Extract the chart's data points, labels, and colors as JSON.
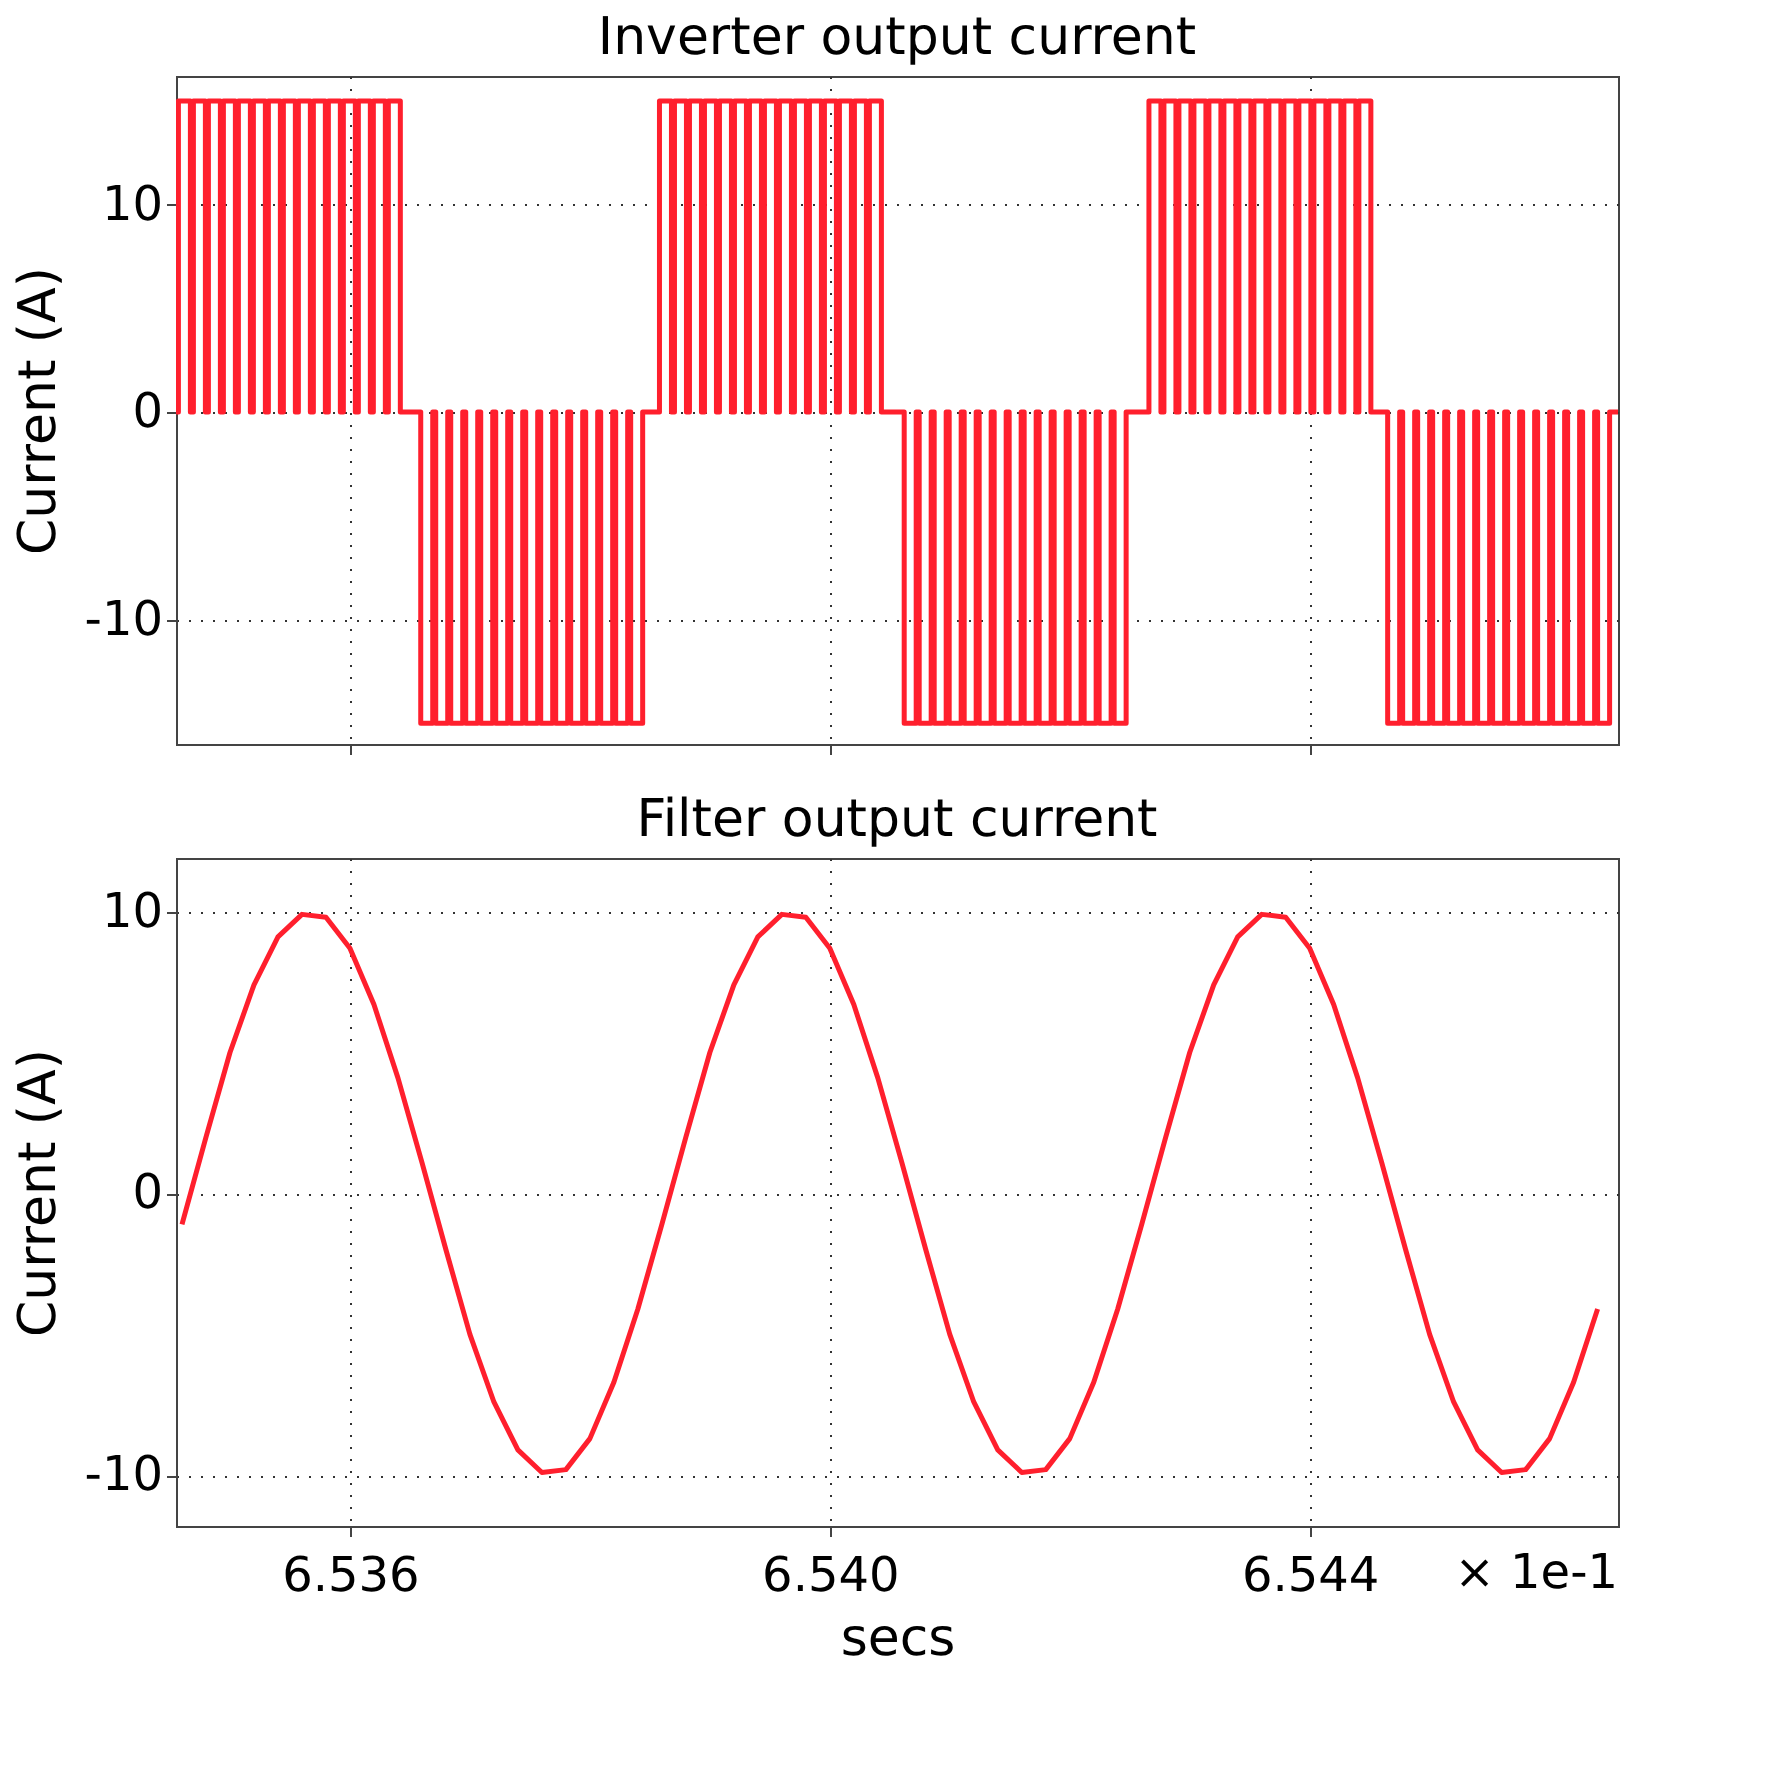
{
  "chart_data": [
    {
      "type": "step",
      "title": "Inverter output current",
      "ylabel": "Current (A)",
      "xlim": [
        6.53455,
        6.54657
      ],
      "ylim": [
        -16.0,
        16.2
      ],
      "xticks": [
        {
          "value": 6.536,
          "label": null
        },
        {
          "value": 6.54,
          "label": null
        },
        {
          "value": 6.544,
          "label": null
        }
      ],
      "yticks": [
        -10,
        0,
        10
      ],
      "grid": true,
      "tick_labels": "y",
      "x": [
        6.53455,
        6.53457,
        6.53467,
        6.534695,
        6.534795,
        6.53482,
        6.53492,
        6.534945,
        6.535045,
        6.53507,
        6.53517,
        6.535195,
        6.535295,
        6.53532,
        6.53542,
        6.535445,
        6.535545,
        6.53557,
        6.53567,
        6.535695,
        6.535795,
        6.53582,
        6.53592,
        6.535945,
        6.536045,
        6.53607,
        6.53617,
        6.536195,
        6.536295,
        6.53632,
        6.53642,
        6.53659,
        6.53669,
        6.536715,
        6.536815,
        6.53684,
        6.53694,
        6.536965,
        6.537065,
        6.53709,
        6.53719,
        6.537215,
        6.537315,
        6.53734,
        6.53744,
        6.537465,
        6.537565,
        6.53759,
        6.53769,
        6.537715,
        6.537815,
        6.53784,
        6.53794,
        6.537965,
        6.538065,
        6.53809,
        6.53819,
        6.538215,
        6.538315,
        6.53834,
        6.53844,
        6.53858,
        6.53868,
        6.538705,
        6.538805,
        6.53883,
        6.53893,
        6.538955,
        6.539055,
        6.53908,
        6.53918,
        6.539205,
        6.539305,
        6.53933,
        6.53943,
        6.539455,
        6.539555,
        6.53958,
        6.53968,
        6.539705,
        6.539805,
        6.53983,
        6.53993,
        6.539955,
        6.540055,
        6.54008,
        6.54018,
        6.540205,
        6.540305,
        6.54033,
        6.54043,
        6.54062,
        6.54072,
        6.540745,
        6.540845,
        6.54087,
        6.54097,
        6.540995,
        6.541095,
        6.54112,
        6.54122,
        6.541245,
        6.541345,
        6.54137,
        6.54147,
        6.541495,
        6.541595,
        6.54162,
        6.54172,
        6.541745,
        6.541845,
        6.54187,
        6.54197,
        6.541995,
        6.542095,
        6.54212,
        6.54222,
        6.542245,
        6.542345,
        6.54237,
        6.54247,
        6.54266,
        6.54276,
        6.542785,
        6.542885,
        6.54291,
        6.54301,
        6.543035,
        6.543135,
        6.54316,
        6.54326,
        6.543285,
        6.543385,
        6.54341,
        6.54351,
        6.543535,
        6.543635,
        6.54366,
        6.54376,
        6.543785,
        6.543885,
        6.54391,
        6.54401,
        6.544035,
        6.544135,
        6.54416,
        6.54426,
        6.544285,
        6.544385,
        6.54441,
        6.54451,
        6.54465,
        6.54475,
        6.544775,
        6.544875,
        6.5449,
        6.545,
        6.545025,
        6.545125,
        6.54515,
        6.54525,
        6.545275,
        6.545375,
        6.5454,
        6.5455,
        6.545525,
        6.545625,
        6.54565,
        6.54575,
        6.545775,
        6.545875,
        6.5459,
        6.546,
        6.546025,
        6.546125,
        6.54615,
        6.54625,
        6.546275,
        6.546375,
        6.5464,
        6.5465,
        6.54657
      ],
      "series": [
        {
          "color": "#ff1f2d",
          "values": [
            0,
            15,
            0,
            15,
            0,
            15,
            0,
            15,
            0,
            15,
            0,
            15,
            0,
            15,
            0,
            15,
            0,
            15,
            0,
            15,
            0,
            15,
            0,
            15,
            0,
            15,
            0,
            15,
            0,
            15,
            0,
            -15,
            0,
            -15,
            0,
            -15,
            0,
            -15,
            0,
            -15,
            0,
            -15,
            0,
            -15,
            0,
            -15,
            0,
            -15,
            0,
            -15,
            0,
            -15,
            0,
            -15,
            0,
            -15,
            0,
            -15,
            0,
            -15,
            0,
            15,
            0,
            15,
            0,
            15,
            0,
            15,
            0,
            15,
            0,
            15,
            0,
            15,
            0,
            15,
            0,
            15,
            0,
            15,
            0,
            15,
            0,
            15,
            0,
            15,
            0,
            15,
            0,
            15,
            0,
            -15,
            0,
            -15,
            0,
            -15,
            0,
            -15,
            0,
            -15,
            0,
            -15,
            0,
            -15,
            0,
            -15,
            0,
            -15,
            0,
            -15,
            0,
            -15,
            0,
            -15,
            0,
            -15,
            0,
            -15,
            0,
            -15,
            0,
            15,
            0,
            15,
            0,
            15,
            0,
            15,
            0,
            15,
            0,
            15,
            0,
            15,
            0,
            15,
            0,
            15,
            0,
            15,
            0,
            15,
            0,
            15,
            0,
            15,
            0,
            15,
            0,
            15,
            0,
            -15,
            0,
            -15,
            0,
            -15,
            0,
            -15,
            0,
            -15,
            0,
            -15,
            0,
            -15,
            0,
            -15,
            0,
            -15,
            0,
            -15,
            0,
            -15,
            0,
            -15,
            0,
            -15,
            0,
            -15,
            0,
            -15,
            0,
            0
          ]
        }
      ]
    },
    {
      "type": "line",
      "title": "Filter output current",
      "ylabel": "Current (A)",
      "xlabel": "secs",
      "xlim": [
        6.53455,
        6.54657
      ],
      "ylim": [
        -11.8,
        11.9
      ],
      "xticks": [
        6.536,
        {
          "value": 6.54,
          "label": "6.540"
        },
        6.544
      ],
      "yticks": [
        -10,
        0,
        10
      ],
      "grid": true,
      "annotations": [
        "× 1e-1"
      ],
      "x": [
        6.5346,
        6.5348,
        6.535,
        6.5352,
        6.5354,
        6.5356,
        6.5358,
        6.536,
        6.5362,
        6.5364,
        6.5366,
        6.5368,
        6.537,
        6.5372,
        6.5374,
        6.5376,
        6.5378,
        6.538,
        6.5382,
        6.5384,
        6.5386,
        6.5388,
        6.539,
        6.5392,
        6.5394,
        6.5396,
        6.5398,
        6.54,
        6.5402,
        6.5404,
        6.5406,
        6.5408,
        6.541,
        6.5412,
        6.5414,
        6.5416,
        6.5418,
        6.542,
        6.5422,
        6.5424,
        6.5426,
        6.5428,
        6.543,
        6.5432,
        6.5434,
        6.5436,
        6.5438,
        6.544,
        6.5442,
        6.5444,
        6.5446,
        6.5448,
        6.545,
        6.5452,
        6.5454,
        6.5456,
        6.5458,
        6.546,
        6.5462,
        6.5464
      ],
      "series": [
        {
          "color": "#ff1f2d",
          "values": [
            -1.1,
            2.0,
            5.0,
            7.4,
            9.1,
            9.9,
            9.8,
            8.7,
            6.7,
            4.1,
            1.1,
            -2.0,
            -5.0,
            -7.4,
            -9.1,
            -9.9,
            -9.8,
            -8.7,
            -6.7,
            -4.1,
            -1.1,
            2.0,
            5.0,
            7.4,
            9.1,
            9.9,
            9.8,
            8.7,
            6.7,
            4.1,
            1.1,
            -2.0,
            -5.0,
            -7.4,
            -9.1,
            -9.9,
            -9.8,
            -8.7,
            -6.7,
            -4.1,
            -1.1,
            2.0,
            5.0,
            7.4,
            9.1,
            9.9,
            9.8,
            8.7,
            6.7,
            4.1,
            1.1,
            -2.0,
            -5.0,
            -7.4,
            -9.1,
            -9.9,
            -9.8,
            -8.7,
            -6.7,
            -4.1
          ]
        }
      ]
    }
  ]
}
